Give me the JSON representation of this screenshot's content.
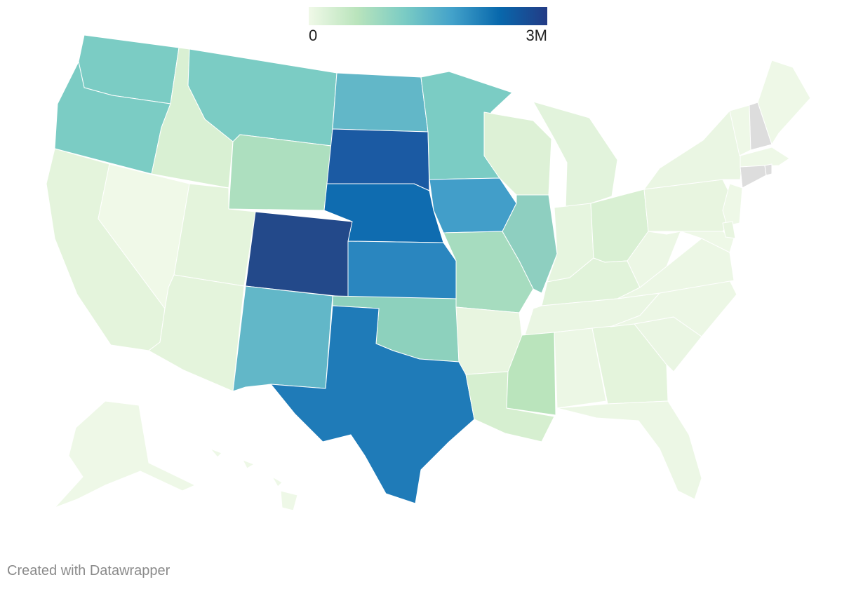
{
  "legend": {
    "min_label": "0",
    "max_label": "3M",
    "gradient_colors": [
      "#f0f9e8",
      "#bae4bc",
      "#7bccc4",
      "#43a2ca",
      "#0868ac",
      "#233b85"
    ]
  },
  "credit": "Created with Datawrapper",
  "no_data_color": "#dddddd",
  "states": [
    {
      "name": "WA",
      "color": "#7bccc4"
    },
    {
      "name": "OR",
      "color": "#7bccc4"
    },
    {
      "name": "CA",
      "color": "#e4f4dc"
    },
    {
      "name": "NV",
      "color": "#f0f9e8"
    },
    {
      "name": "ID",
      "color": "#d9f0d3"
    },
    {
      "name": "MT",
      "color": "#7bccc4"
    },
    {
      "name": "WY",
      "color": "#addfbf"
    },
    {
      "name": "UT",
      "color": "#e4f4dc"
    },
    {
      "name": "AZ",
      "color": "#e4f4dc"
    },
    {
      "name": "CO",
      "color": "#23498a"
    },
    {
      "name": "NM",
      "color": "#62b7c8"
    },
    {
      "name": "ND",
      "color": "#62b7c8"
    },
    {
      "name": "SD",
      "color": "#1b5aa3"
    },
    {
      "name": "NE",
      "color": "#0f6cb0"
    },
    {
      "name": "KS",
      "color": "#2a86bf"
    },
    {
      "name": "OK",
      "color": "#8dd1bd"
    },
    {
      "name": "TX",
      "color": "#1f7bb8"
    },
    {
      "name": "MN",
      "color": "#7bccc4"
    },
    {
      "name": "IA",
      "color": "#429ec9"
    },
    {
      "name": "MO",
      "color": "#a6dcbf"
    },
    {
      "name": "AR",
      "color": "#e8f5e0"
    },
    {
      "name": "LA",
      "color": "#d6efd0"
    },
    {
      "name": "WI",
      "color": "#ddf1d6"
    },
    {
      "name": "IL",
      "color": "#8ecfc0"
    },
    {
      "name": "MI",
      "color": "#e2f3dc"
    },
    {
      "name": "IN",
      "color": "#e6f5df"
    },
    {
      "name": "OH",
      "color": "#d9f0d3"
    },
    {
      "name": "KY",
      "color": "#e1f3da"
    },
    {
      "name": "TN",
      "color": "#eaf6e3"
    },
    {
      "name": "MS",
      "color": "#bae4bc"
    },
    {
      "name": "AL",
      "color": "#ecf7e5"
    },
    {
      "name": "GA",
      "color": "#e4f4dc"
    },
    {
      "name": "FL",
      "color": "#ecf7e5"
    },
    {
      "name": "SC",
      "color": "#eaf6e3"
    },
    {
      "name": "NC",
      "color": "#ecf7e5"
    },
    {
      "name": "VA",
      "color": "#ecf7e5"
    },
    {
      "name": "WV",
      "color": "#ecf7e5"
    },
    {
      "name": "PA",
      "color": "#e8f5e0"
    },
    {
      "name": "NY",
      "color": "#eaf6e3"
    },
    {
      "name": "NJ",
      "color": "#eef8e7"
    },
    {
      "name": "DE",
      "color": "#e8f5e0"
    },
    {
      "name": "MD",
      "color": "#eef8e7"
    },
    {
      "name": "VT",
      "color": "#eef8e7"
    },
    {
      "name": "NH",
      "color": "#dddddd"
    },
    {
      "name": "ME",
      "color": "#eef8e7"
    },
    {
      "name": "MA",
      "color": "#eef8e7"
    },
    {
      "name": "CT",
      "color": "#dddddd"
    },
    {
      "name": "RI",
      "color": "#dddddd"
    },
    {
      "name": "AK",
      "color": "#eef8e7"
    },
    {
      "name": "HI",
      "color": "#eef8e7"
    }
  ]
}
